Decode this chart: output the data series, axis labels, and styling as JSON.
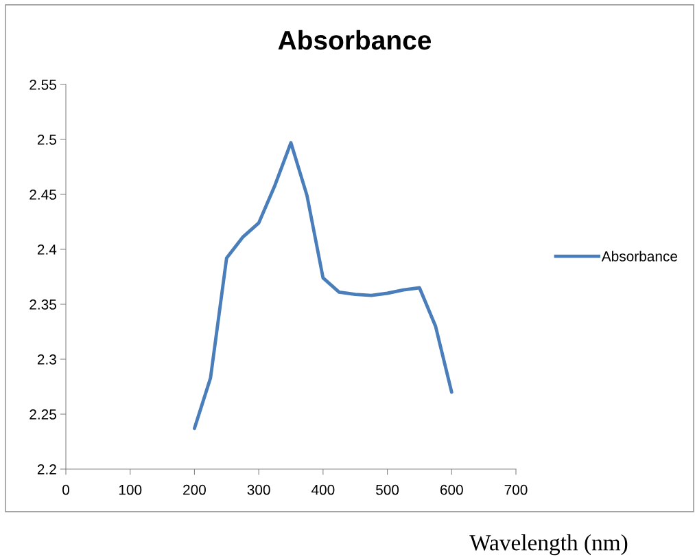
{
  "chart_data": {
    "type": "line",
    "title": "Absorbance",
    "xlabel": "Wavelength (nm)",
    "x": [
      200,
      225,
      250,
      275,
      300,
      325,
      350,
      375,
      400,
      425,
      450,
      475,
      500,
      525,
      550,
      575,
      600
    ],
    "series": [
      {
        "name": "Absorbance",
        "color": "#4a7ebb",
        "values": [
          2.237,
          2.283,
          2.392,
          2.411,
          2.424,
          2.458,
          2.497,
          2.449,
          2.374,
          2.361,
          2.359,
          2.358,
          2.36,
          2.363,
          2.365,
          2.33,
          2.27
        ]
      }
    ],
    "xlim": [
      0,
      700
    ],
    "xticks": [
      0,
      100,
      200,
      300,
      400,
      500,
      600,
      700
    ],
    "ylim": [
      2.2,
      2.55
    ],
    "yticks": [
      {
        "value": 2.2,
        "label": "2.2"
      },
      {
        "value": 2.25,
        "label": "2.25"
      },
      {
        "value": 2.3,
        "label": "2.3"
      },
      {
        "value": 2.35,
        "label": "2.35"
      },
      {
        "value": 2.4,
        "label": "2.4"
      },
      {
        "value": 2.45,
        "label": "2.45"
      },
      {
        "value": 2.5,
        "label": "2.5"
      },
      {
        "value": 2.55,
        "label": "2.55"
      }
    ],
    "grid": false,
    "legend": "right",
    "marker": "none",
    "line_style": "solid"
  }
}
